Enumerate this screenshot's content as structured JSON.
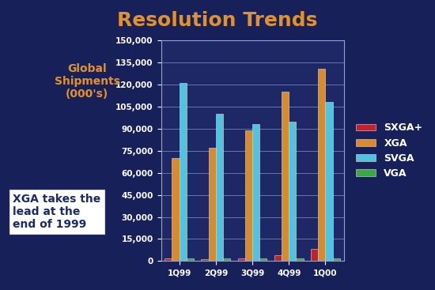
{
  "chart_data": {
    "type": "bar",
    "title": "Resolution Trends",
    "y_label": "Global\nShipments\n(000's)",
    "annotation": "XGA takes the\nlead at the\nend of 1999",
    "categories": [
      "1Q99",
      "2Q99",
      "3Q99",
      "4Q99",
      "1Q00"
    ],
    "series": [
      {
        "name": "SXGA+",
        "color": "#c0242b",
        "values": [
          2000,
          1000,
          2000,
          4000,
          8000
        ]
      },
      {
        "name": "XGA",
        "color": "#d98a2b",
        "values": [
          70000,
          77000,
          89000,
          115000,
          131000
        ]
      },
      {
        "name": "SVGA",
        "color": "#4fc3e0",
        "values": [
          121000,
          100000,
          93000,
          95000,
          108000
        ]
      },
      {
        "name": "VGA",
        "color": "#3aa845",
        "values": [
          2000,
          2000,
          2000,
          2000,
          2000
        ]
      }
    ],
    "ylim": [
      0,
      150000
    ],
    "yticks": [
      0,
      {
        "value": 15000,
        "label": "15,000"
      },
      {
        "value": 30000,
        "label": "30,000"
      },
      {
        "value": 45000,
        "label": "45,000"
      },
      {
        "value": 60000,
        "label": "60,000"
      },
      {
        "value": 75000,
        "label": "75,000"
      },
      {
        "value": 90000,
        "label": "90,000"
      },
      {
        "value": 105000,
        "label": "105,000"
      },
      {
        "value": 120000,
        "label": "120,000"
      },
      {
        "value": 135000,
        "label": "135,000"
      },
      {
        "value": 150000,
        "label": "150,000"
      }
    ],
    "grid": true,
    "legend": "right"
  }
}
